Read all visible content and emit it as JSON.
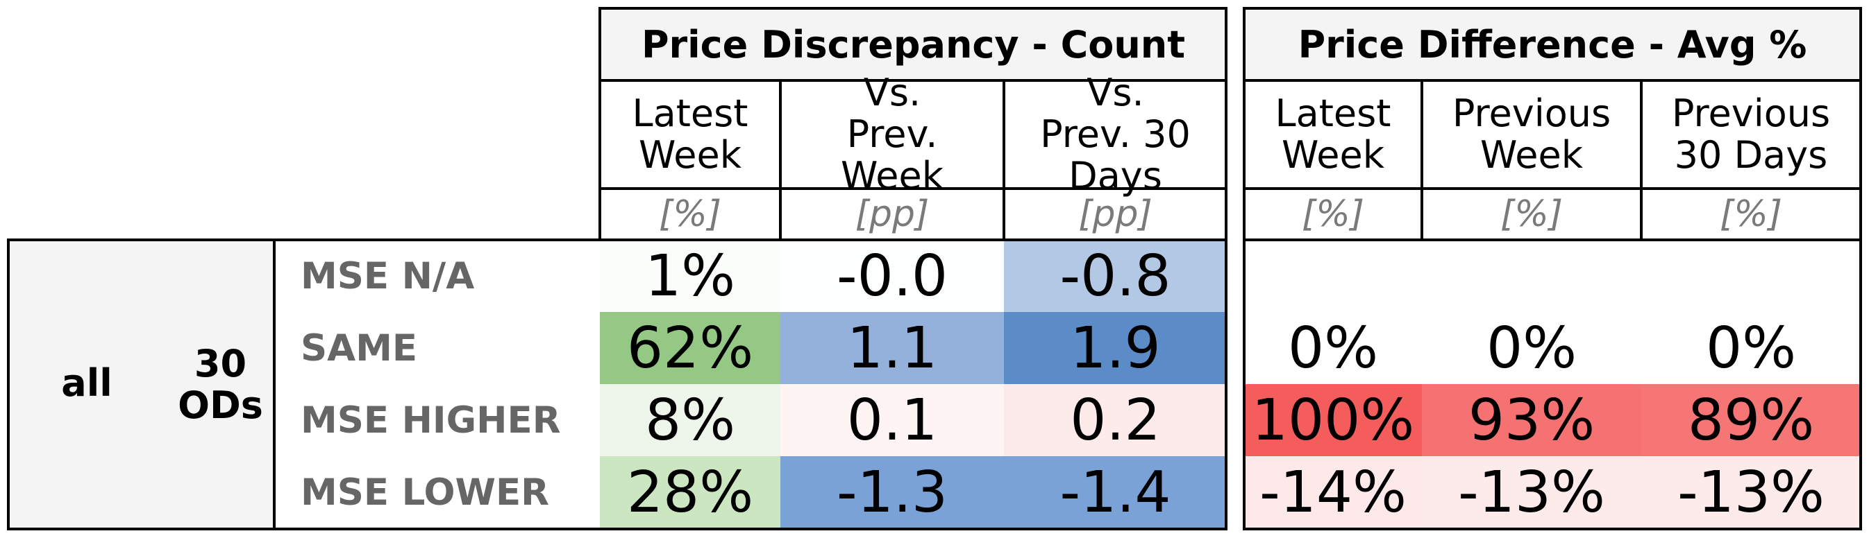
{
  "chart_data": {
    "type": "table",
    "groups": [
      {
        "title": "Price Discrepancy - Count",
        "columns": [
          {
            "header": "Latest Week",
            "unit": "[%]"
          },
          {
            "header": "Vs. Prev. Week",
            "unit": "[pp]"
          },
          {
            "header": "Vs. Prev. 30 Days",
            "unit": "[pp]"
          }
        ]
      },
      {
        "title": "Price Difference - Avg %",
        "columns": [
          {
            "header": "Latest Week",
            "unit": "[%]"
          },
          {
            "header": "Previous Week",
            "unit": "[%]"
          },
          {
            "header": "Previous 30 Days",
            "unit": "[%]"
          }
        ]
      }
    ],
    "row_group": {
      "segment": "all",
      "scope": "30 ODs"
    },
    "rows": [
      {
        "label": "MSE N/A",
        "count": [
          "1%",
          "-0.0",
          "-0.8"
        ],
        "count_colors": [
          "#fbfdfa",
          "#fdfefe",
          "#b3c8e4"
        ],
        "avg": [
          "",
          "",
          ""
        ],
        "avg_colors": [
          "#ffffff",
          "#ffffff",
          "#ffffff"
        ]
      },
      {
        "label": "SAME",
        "count": [
          "62%",
          "1.1",
          "1.9"
        ],
        "count_colors": [
          "#95c884",
          "#93b1db",
          "#5b8cc8"
        ],
        "avg": [
          "0%",
          "0%",
          "0%"
        ],
        "avg_colors": [
          "#ffffff",
          "#ffffff",
          "#ffffff"
        ]
      },
      {
        "label": "MSE HIGHER",
        "count": [
          "8%",
          "0.1",
          "0.2"
        ],
        "count_colors": [
          "#eef6ec",
          "#fef4f4",
          "#fdebeb"
        ],
        "avg": [
          "100%",
          "93%",
          "89%"
        ],
        "avg_colors": [
          "#f55c5c",
          "#f67272",
          "#f67676"
        ]
      },
      {
        "label": "MSE LOWER",
        "count": [
          "28%",
          "-1.3",
          "-1.4"
        ],
        "count_colors": [
          "#cce6c2",
          "#7aa2d6",
          "#7aa2d6"
        ],
        "avg": [
          "-14%",
          "-13%",
          "-13%"
        ],
        "avg_colors": [
          "#fde9e9",
          "#fdeaea",
          "#fdeaea"
        ]
      }
    ]
  }
}
